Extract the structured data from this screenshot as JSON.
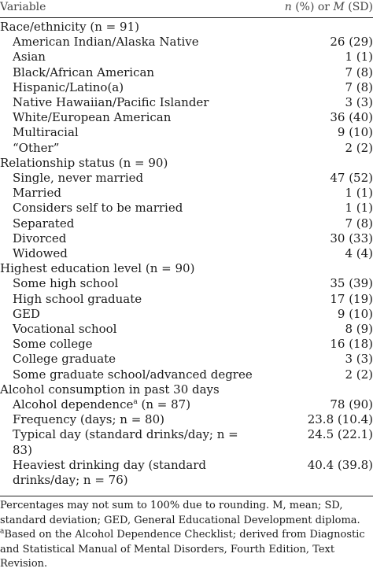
{
  "header": {
    "variable": "Variable",
    "stat_n": "n",
    "stat_mid": " (%) or ",
    "stat_m": "M",
    "stat_sd": " (SD)"
  },
  "rows": [
    {
      "type": "section",
      "label": "Race/ethnicity (n = 91)",
      "value": ""
    },
    {
      "type": "item",
      "label": "American Indian/Alaska Native",
      "value": "26 (29)"
    },
    {
      "type": "item",
      "label": "Asian",
      "value": "1 (1)"
    },
    {
      "type": "item",
      "label": "Black/African American",
      "value": "7 (8)"
    },
    {
      "type": "item",
      "label": "Hispanic/Latino(a)",
      "value": "7 (8)"
    },
    {
      "type": "item",
      "label": "Native Hawaiian/Pacific Islander",
      "value": "3 (3)"
    },
    {
      "type": "item",
      "label": "White/European American",
      "value": "36 (40)"
    },
    {
      "type": "item",
      "label": "Multiracial",
      "value": "9 (10)"
    },
    {
      "type": "item",
      "label": "“Other”",
      "value": "2 (2)"
    },
    {
      "type": "section",
      "label": "Relationship status (n = 90)",
      "value": ""
    },
    {
      "type": "item",
      "label": "Single, never married",
      "value": "47 (52)"
    },
    {
      "type": "item",
      "label": "Married",
      "value": "1 (1)"
    },
    {
      "type": "item",
      "label": "Considers self to be married",
      "value": "1 (1)"
    },
    {
      "type": "item",
      "label": "Separated",
      "value": "7 (8)"
    },
    {
      "type": "item",
      "label": "Divorced",
      "value": "30 (33)"
    },
    {
      "type": "item",
      "label": "Widowed",
      "value": "4 (4)"
    },
    {
      "type": "section",
      "label": "Highest education level (n = 90)",
      "value": ""
    },
    {
      "type": "item",
      "label": "Some high school",
      "value": "35 (39)"
    },
    {
      "type": "item",
      "label": "High school graduate",
      "value": "17 (19)"
    },
    {
      "type": "item",
      "label": "GED",
      "value": "9 (10)"
    },
    {
      "type": "item",
      "label": "Vocational school",
      "value": "8 (9)"
    },
    {
      "type": "item",
      "label": "Some college",
      "value": "16 (18)"
    },
    {
      "type": "item",
      "label": "College graduate",
      "value": "3 (3)"
    },
    {
      "type": "item",
      "label": "Some graduate school/advanced degree",
      "value": "2 (2)"
    },
    {
      "type": "section",
      "label": "Alcohol consumption in past 30 days",
      "value": ""
    },
    {
      "type": "item",
      "label": "Alcohol dependence",
      "sup": "a",
      "label_after": " (n = 87)",
      "value": "78 (90)"
    },
    {
      "type": "item",
      "label": "Frequency (days; n = 80)",
      "value": "23.8 (10.4)"
    },
    {
      "type": "item",
      "label": "Typical day (standard drinks/day; n = 83)",
      "value": "24.5 (22.1)"
    },
    {
      "type": "item",
      "label": "Heaviest drinking day (standard drinks/day; n = 76)",
      "value": "40.4 (39.8)"
    }
  ],
  "notes": {
    "note1": "Percentages may not sum to 100% due to rounding. M, mean; SD, standard deviation; GED, General Educational Development diploma.",
    "note2_sup": "a",
    "note2": "Based on the Alcohol Dependence Checklist; derived from Diagnostic and Statistical Manual of Mental Disorders, Fourth Edition, Text Revision."
  }
}
